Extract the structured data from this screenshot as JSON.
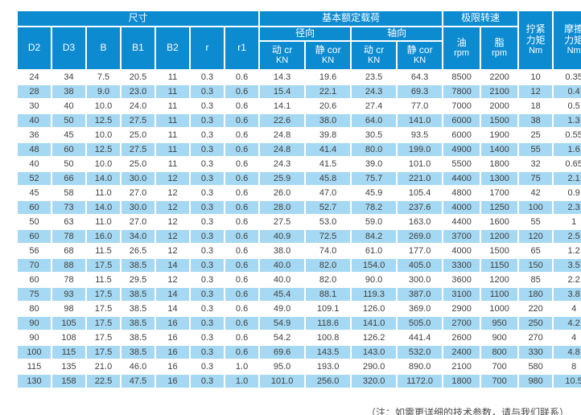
{
  "colors": {
    "header_blue": "#0d8bd1",
    "stripe_blue": "#a5d8f2",
    "cell_text": "#404040",
    "header_text": "#ffffff"
  },
  "table": {
    "groups": {
      "size": "尺寸",
      "load": "基本额定载荷",
      "speed": "极限转速"
    },
    "dim_cols": [
      "D2",
      "D3",
      "B",
      "B1",
      "B2",
      "r",
      "r1"
    ],
    "load_sub": {
      "radial": "径向",
      "axial": "轴向"
    },
    "load_cols": [
      {
        "label": "动 cr",
        "unit": "KN"
      },
      {
        "label": "静 cor",
        "unit": "KN"
      },
      {
        "label": "动 cr",
        "unit": "KN"
      },
      {
        "label": "静 cor",
        "unit": "KN"
      }
    ],
    "speed_cols": {
      "oil": {
        "label": "油",
        "unit": "rpm"
      },
      "grease": {
        "label": "脂",
        "unit": "rpm"
      }
    },
    "torque_cols": {
      "tighten": {
        "l1": "拧紧",
        "l2": "力矩",
        "unit": "Nm"
      },
      "friction": {
        "l1": "摩擦",
        "l2": "力矩",
        "unit": "Nm"
      }
    },
    "rows": [
      [
        "24",
        "34",
        "7.5",
        "20.5",
        "11",
        "0.3",
        "0.6",
        "14.3",
        "19.6",
        "23.5",
        "64.3",
        "8500",
        "2200",
        "10",
        "0.35"
      ],
      [
        "28",
        "38",
        "9.0",
        "23.0",
        "11",
        "0.3",
        "0.6",
        "15.4",
        "22.1",
        "24.3",
        "69.3",
        "7800",
        "2100",
        "12",
        "0.4"
      ],
      [
        "30",
        "40",
        "10.0",
        "24.0",
        "11",
        "0.3",
        "0.6",
        "14.1",
        "20.6",
        "27.4",
        "77.0",
        "7000",
        "2000",
        "18",
        "0.5"
      ],
      [
        "40",
        "50",
        "12.5",
        "27.5",
        "11",
        "0.3",
        "0.6",
        "22.6",
        "38.0",
        "64.0",
        "141.0",
        "6000",
        "1500",
        "38",
        "1.3"
      ],
      [
        "36",
        "45",
        "10.0",
        "25.0",
        "11",
        "0.3",
        "0.6",
        "24.8",
        "39.8",
        "30.5",
        "93.5",
        "6000",
        "1900",
        "25",
        "0.55"
      ],
      [
        "48",
        "60",
        "12.5",
        "27.5",
        "11",
        "0.3",
        "0.6",
        "24.8",
        "41.4",
        "80.0",
        "199.0",
        "4900",
        "1400",
        "55",
        "1.6"
      ],
      [
        "40",
        "50",
        "10.0",
        "25.0",
        "11",
        "0.3",
        "0.6",
        "24.3",
        "41.5",
        "39.0",
        "101.0",
        "5500",
        "1800",
        "32",
        "0.65"
      ],
      [
        "52",
        "66",
        "14.0",
        "30.0",
        "12",
        "0.3",
        "0.6",
        "25.9",
        "45.8",
        "75.7",
        "221.0",
        "4400",
        "1300",
        "75",
        "2.1"
      ],
      [
        "45",
        "58",
        "11.0",
        "27.0",
        "12",
        "0.3",
        "0.6",
        "26.0",
        "47.0",
        "45.9",
        "105.4",
        "4800",
        "1700",
        "42",
        "0.9"
      ],
      [
        "60",
        "73",
        "14.0",
        "30.0",
        "12",
        "0.3",
        "0.6",
        "28.0",
        "52.7",
        "78.2",
        "237.6",
        "4000",
        "1250",
        "100",
        "2.3"
      ],
      [
        "50",
        "63",
        "11.0",
        "27.0",
        "12",
        "0.3",
        "0.6",
        "27.5",
        "53.0",
        "59.0",
        "163.0",
        "4400",
        "1600",
        "55",
        "1"
      ],
      [
        "60",
        "78",
        "16.0",
        "34.0",
        "12",
        "0.3",
        "0.6",
        "40.9",
        "72.5",
        "84.2",
        "269.0",
        "3700",
        "1200",
        "120",
        "2.5"
      ],
      [
        "56",
        "68",
        "11.5",
        "26.5",
        "12",
        "0.3",
        "0.6",
        "38.0",
        "74.0",
        "61.0",
        "177.0",
        "4000",
        "1500",
        "65",
        "1.2"
      ],
      [
        "70",
        "88",
        "17.5",
        "38.5",
        "14",
        "0.3",
        "0.6",
        "40.0",
        "82.0",
        "154.0",
        "405.0",
        "3300",
        "1150",
        "150",
        "3.5"
      ],
      [
        "60",
        "78",
        "11.5",
        "29.5",
        "12",
        "0.3",
        "0.6",
        "40.0",
        "82.0",
        "90.0",
        "300.0",
        "3600",
        "1200",
        "85",
        "2.2"
      ],
      [
        "75",
        "93",
        "17.5",
        "38.5",
        "14",
        "0.3",
        "0.6",
        "45.4",
        "88.1",
        "119.3",
        "387.0",
        "3100",
        "1100",
        "180",
        "3.8"
      ],
      [
        "80",
        "98",
        "17.5",
        "38.5",
        "14",
        "0.3",
        "0.6",
        "49.0",
        "109.1",
        "126.0",
        "369.0",
        "2900",
        "1000",
        "220",
        "4"
      ],
      [
        "90",
        "105",
        "17.5",
        "38.5",
        "16",
        "0.3",
        "0.6",
        "54.9",
        "118.6",
        "141.0",
        "505.0",
        "2700",
        "950",
        "250",
        "4.2"
      ],
      [
        "90",
        "108",
        "17.5",
        "38.5",
        "16",
        "0.3",
        "0.6",
        "54.2",
        "100.8",
        "126.2",
        "441.4",
        "2600",
        "900",
        "270",
        "4"
      ],
      [
        "100",
        "115",
        "17.5",
        "38.5",
        "16",
        "0.3",
        "0.6",
        "69.6",
        "143.5",
        "143.0",
        "532.0",
        "2400",
        "800",
        "330",
        "4.8"
      ],
      [
        "115",
        "135",
        "21.0",
        "46.0",
        "16",
        "0.3",
        "1.0",
        "95.0",
        "193.0",
        "290.0",
        "890.0",
        "2100",
        "700",
        "580",
        "8"
      ],
      [
        "130",
        "158",
        "22.5",
        "47.5",
        "16",
        "0.3",
        "1.0",
        "101.0",
        "256.0",
        "320.0",
        "1172.0",
        "1800",
        "700",
        "980",
        "10.5"
      ]
    ]
  },
  "footnote": {
    "text": "（注：如需更详细的技术参数，请与我们联系）"
  }
}
